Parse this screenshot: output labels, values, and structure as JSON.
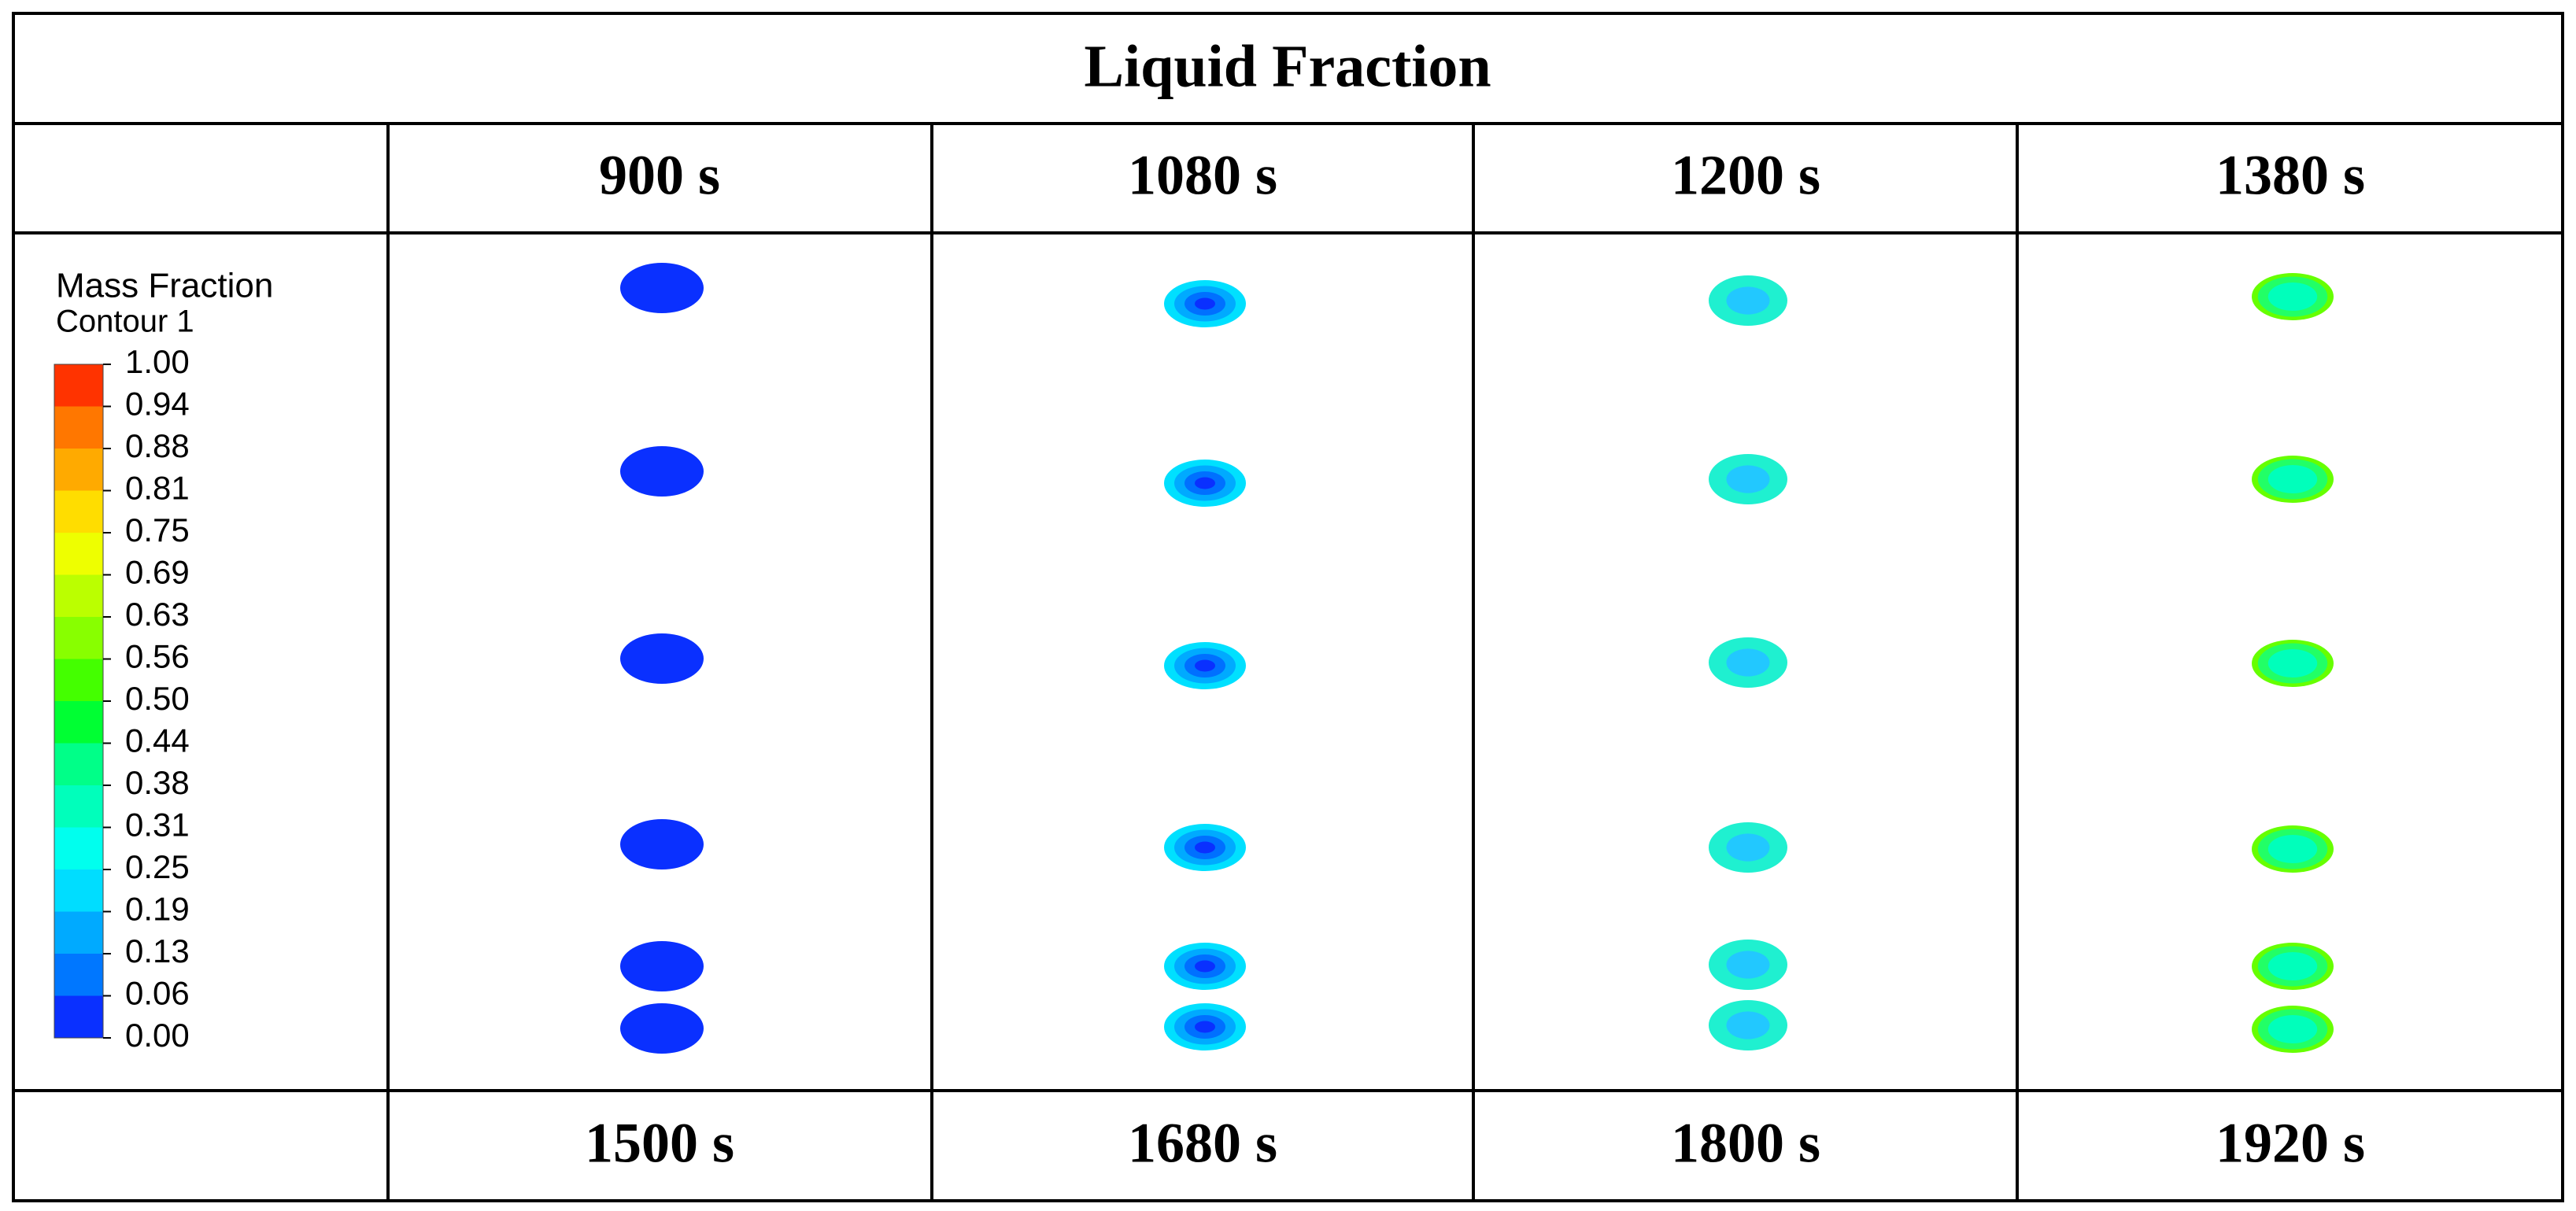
{
  "header": {
    "title": "Liquid Fraction"
  },
  "table": {
    "rows": [
      [
        "900 s",
        "1080 s",
        "1200 s",
        "1380 s"
      ],
      [
        "1500 s",
        "1680 s",
        "1800 s",
        "1920 s"
      ]
    ]
  },
  "legend": {
    "title": "Mass Fraction",
    "subtitle": "Contour 1",
    "levels": [
      "1.00",
      "0.94",
      "0.88",
      "0.81",
      "0.75",
      "0.69",
      "0.63",
      "0.56",
      "0.50",
      "0.44",
      "0.38",
      "0.31",
      "0.25",
      "0.19",
      "0.13",
      "0.06",
      "0.00"
    ],
    "colors": [
      "#ff3300",
      "#ff7700",
      "#ffaa00",
      "#ffdd00",
      "#eeff00",
      "#bbff00",
      "#88ff00",
      "#44ff00",
      "#00ff33",
      "#00ff88",
      "#00ffbb",
      "#00ffee",
      "#00ddff",
      "#00aaff",
      "#0077ff",
      "#0a30ff"
    ]
  }
}
